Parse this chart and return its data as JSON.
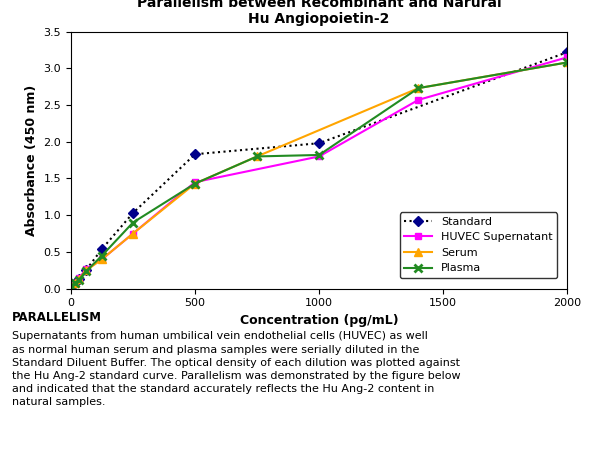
{
  "title_line1": "Parallelism between Recombinant and Narural",
  "title_line2": "Hu Angiopoietin-2",
  "xlabel": "Concentration (pg/mL)",
  "ylabel": "Absorbance (450 nm)",
  "xlim": [
    0,
    2000
  ],
  "ylim": [
    0,
    3.5
  ],
  "xticks": [
    0,
    500,
    1000,
    1500,
    2000
  ],
  "yticks": [
    0.0,
    0.5,
    1.0,
    1.5,
    2.0,
    2.5,
    3.0,
    3.5
  ],
  "standard": {
    "x": [
      0,
      15.6,
      31.25,
      62.5,
      125,
      250,
      500,
      1000,
      2000
    ],
    "y": [
      0.04,
      0.08,
      0.13,
      0.26,
      0.54,
      1.03,
      1.83,
      1.98,
      3.22
    ],
    "color": "#000000",
    "linestyle": "dotted",
    "marker": "D",
    "marker_color": "#00008B",
    "label": "Standard",
    "lw": 1.5,
    "ms": 5
  },
  "huvec": {
    "x": [
      0,
      15.6,
      31.25,
      62.5,
      125,
      250,
      500,
      1000,
      1400,
      2000
    ],
    "y": [
      0.04,
      0.08,
      0.14,
      0.27,
      0.4,
      0.75,
      1.45,
      1.8,
      2.57,
      3.15
    ],
    "color": "#FF00FF",
    "linestyle": "solid",
    "marker": "s",
    "label": "HUVEC Supernatant",
    "lw": 1.5,
    "ms": 5
  },
  "serum": {
    "x": [
      0,
      15.6,
      31.25,
      62.5,
      125,
      250,
      500,
      750,
      1400,
      2000
    ],
    "y": [
      0.04,
      0.08,
      0.13,
      0.25,
      0.4,
      0.75,
      1.43,
      1.8,
      2.73,
      3.08
    ],
    "color": "#FFA500",
    "linestyle": "solid",
    "marker": "^",
    "label": "Serum",
    "lw": 1.5,
    "ms": 6
  },
  "plasma": {
    "x": [
      0,
      15.6,
      31.25,
      62.5,
      125,
      250,
      500,
      750,
      1000,
      1400,
      2000
    ],
    "y": [
      0.04,
      0.07,
      0.12,
      0.24,
      0.45,
      0.9,
      1.43,
      1.8,
      1.82,
      2.73,
      3.08
    ],
    "color": "#228B22",
    "linestyle": "solid",
    "marker": "x",
    "label": "Plasma",
    "lw": 1.5,
    "ms": 6
  },
  "parallelism_title": "PARALLELISM",
  "parallelism_text": "Supernatants from human umbilical vein endothelial cells (HUVEC) as well\nas normal human serum and plasma samples were serially diluted in the\nStandard Diluent Buffer. The optical density of each dilution was plotted against\nthe Hu Ang-2 standard curve. Parallelism was demonstrated by the figure below\nand indicated that the standard accurately reflects the Hu Ang-2 content in\nnatural samples.",
  "bg_color": "#ffffff"
}
